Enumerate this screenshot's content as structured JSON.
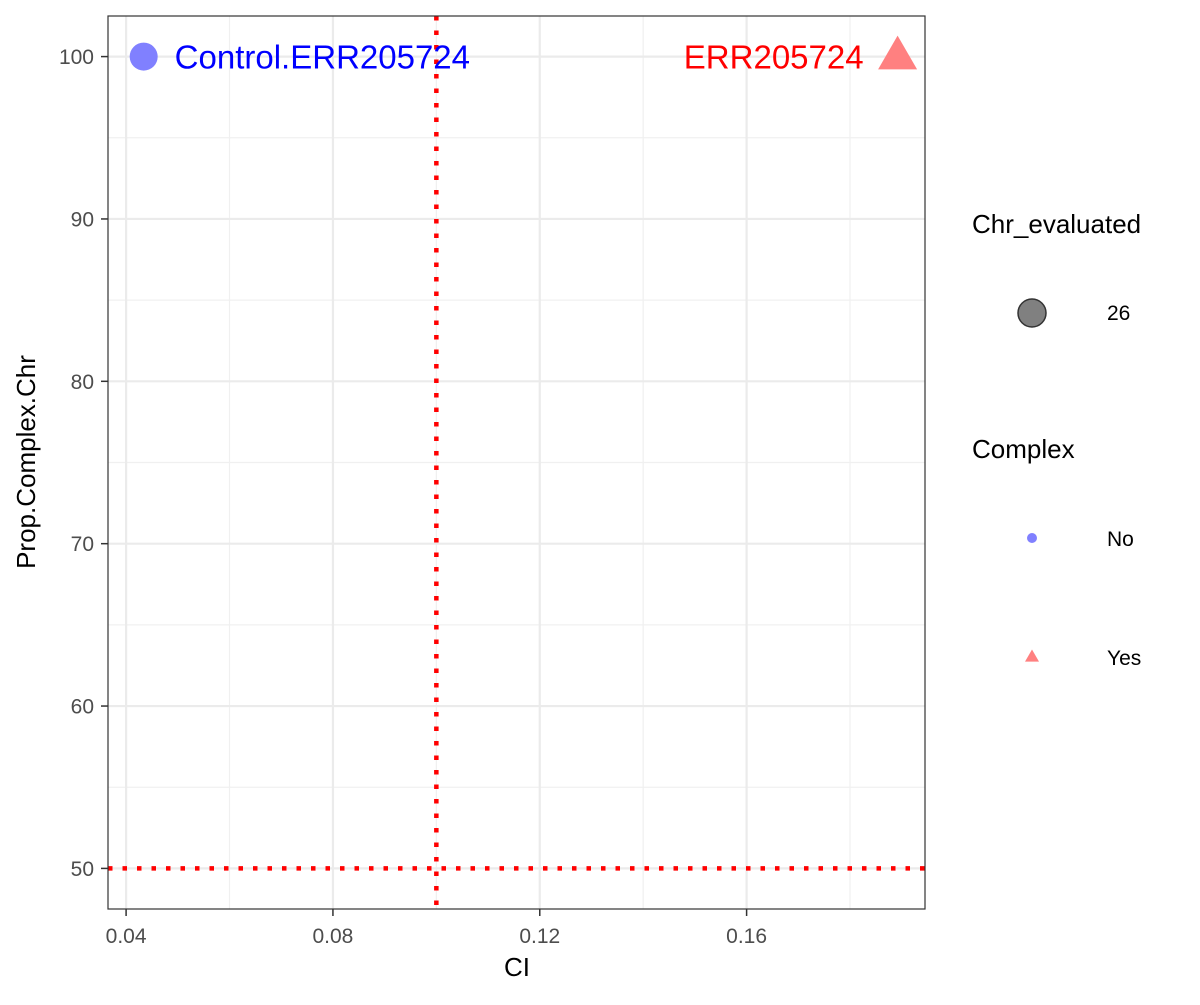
{
  "chart_data": {
    "type": "scatter",
    "xlabel": "CI",
    "ylabel": "Prop.Complex.Chr",
    "xlim": [
      0.0365,
      0.1945
    ],
    "ylim": [
      47.5,
      102.5
    ],
    "x_ticks": [
      {
        "value": 0.04,
        "label": "0.04"
      },
      {
        "value": 0.08,
        "label": "0.08"
      },
      {
        "value": 0.12,
        "label": "0.12"
      },
      {
        "value": 0.16,
        "label": "0.16"
      }
    ],
    "y_ticks": [
      {
        "value": 50,
        "label": "50"
      },
      {
        "value": 60,
        "label": "60"
      },
      {
        "value": 70,
        "label": "70"
      },
      {
        "value": 80,
        "label": "80"
      },
      {
        "value": 90,
        "label": "90"
      },
      {
        "value": 100,
        "label": "100"
      }
    ],
    "grid": true,
    "reference_lines": [
      {
        "orientation": "vertical",
        "value": 0.1,
        "color": "#ff0000",
        "style": "dotted"
      },
      {
        "orientation": "horizontal",
        "value": 50,
        "color": "#ff0000",
        "style": "dotted"
      }
    ],
    "points": [
      {
        "x": 0.0434,
        "y": 100,
        "label": "Control.ERR205724",
        "complex": "No",
        "shape": "circle",
        "color": "#8080ff",
        "label_color": "#0000ff"
      },
      {
        "x": 0.1892,
        "y": 100,
        "label": "ERR205724",
        "complex": "Yes",
        "shape": "triangle",
        "color": "#ff8080",
        "label_color": "#ff0000"
      }
    ],
    "legend": {
      "placement": "right",
      "groups": [
        {
          "title": "Chr_evaluated",
          "items": [
            {
              "label": "26",
              "shape": "circle",
              "color": "#808080"
            }
          ]
        },
        {
          "title": "Complex",
          "items": [
            {
              "label": "No",
              "shape": "circle",
              "color": "#8080ff"
            },
            {
              "label": "Yes",
              "shape": "triangle",
              "color": "#ff8080"
            }
          ]
        }
      ]
    }
  }
}
